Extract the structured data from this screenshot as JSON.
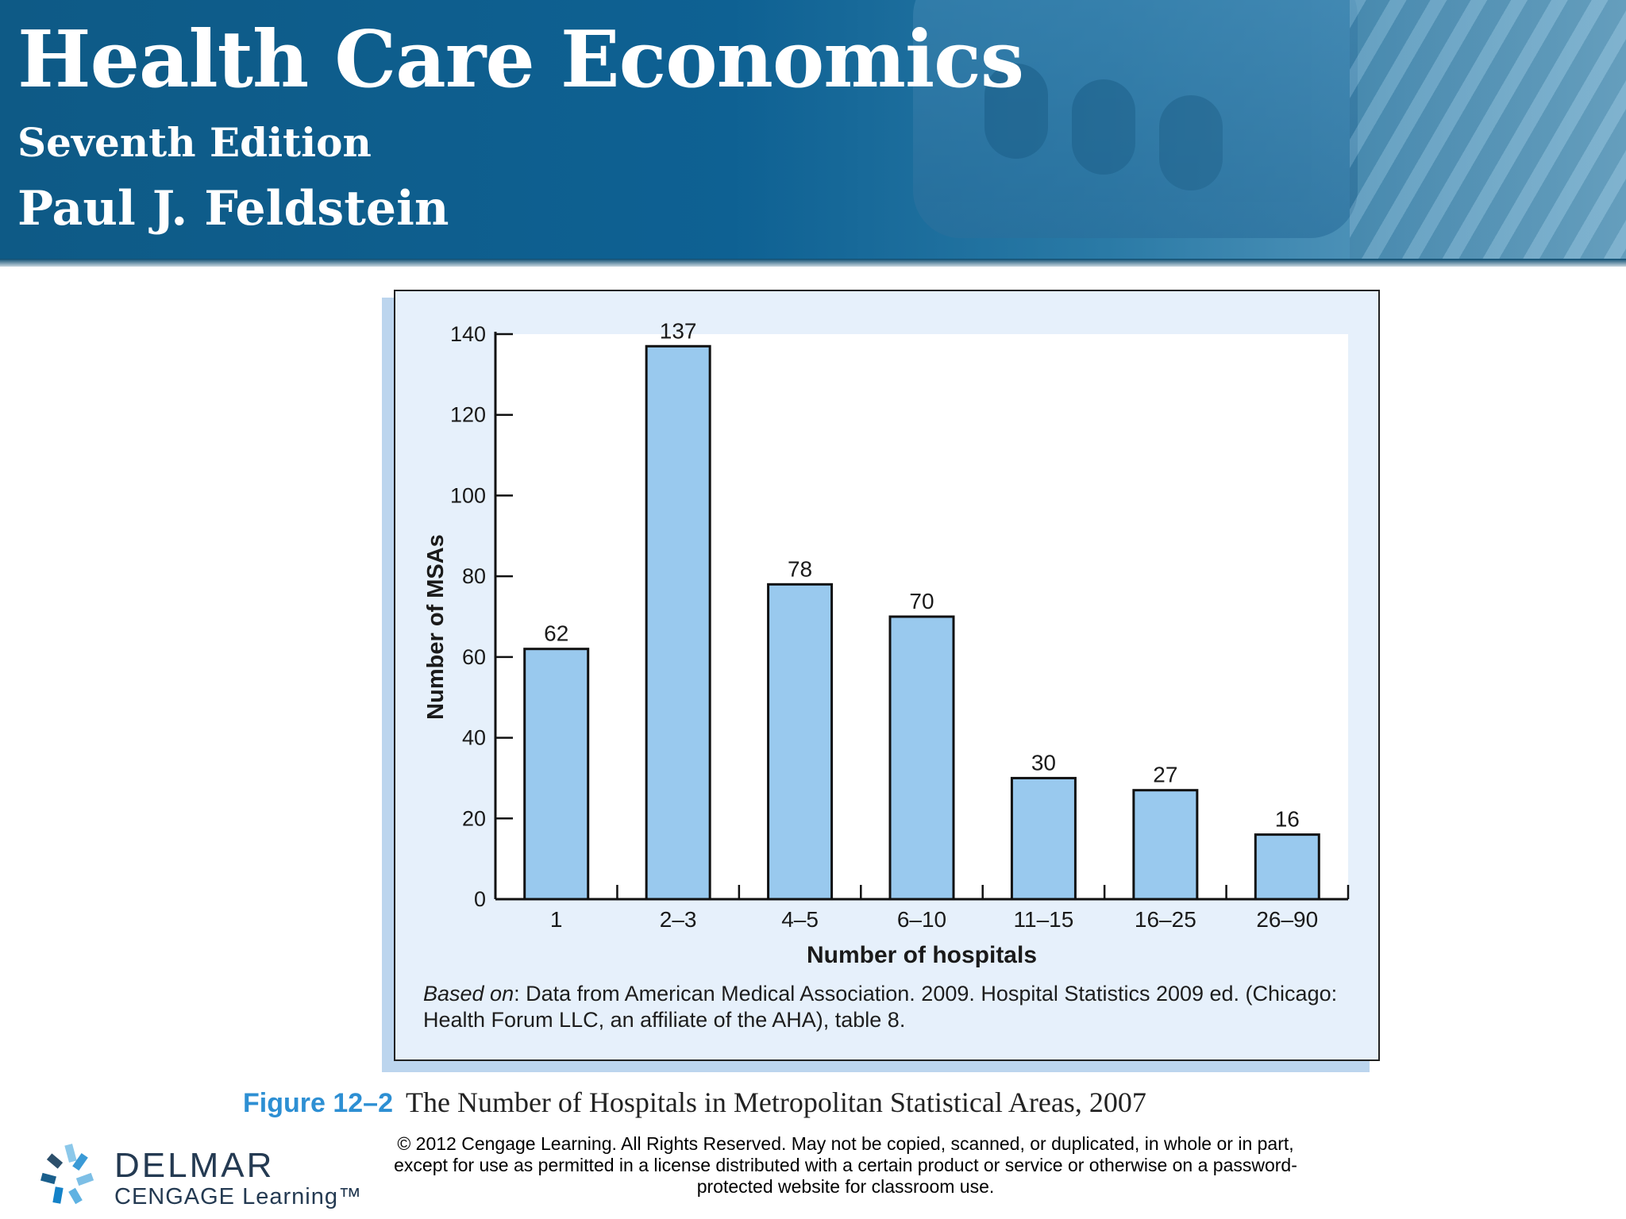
{
  "header": {
    "title": "Health Care Economics",
    "edition": "Seventh Edition",
    "author": "Paul J. Feldstein"
  },
  "figure": {
    "label": "Figure 12–2",
    "title": "The Number of Hospitals in Metropolitan Statistical Areas, 2007",
    "source_prefix": "Based on",
    "source_text": ": Data from American Medical Association. 2009. Hospital Statistics 2009 ed. (Chicago: Health Forum LLC, an affiliate of the AHA), table 8."
  },
  "chart_data": {
    "type": "bar",
    "title": "",
    "categories": [
      "1",
      "2–3",
      "4–5",
      "6–10",
      "11–15",
      "16–25",
      "26–90"
    ],
    "values": [
      62,
      137,
      78,
      70,
      30,
      27,
      16
    ],
    "xlabel": "Number of hospitals",
    "ylabel": "Number of MSAs",
    "ylim": [
      0,
      140
    ],
    "yticks": [
      0,
      20,
      40,
      60,
      80,
      100,
      120,
      140
    ],
    "grid": false,
    "data_labels": true,
    "colors": {
      "bar": "#99c9ee",
      "bar_stroke": "#111111",
      "plot_bg": "#ffffff",
      "panel_bg": "#e6f0fb"
    }
  },
  "footer": {
    "copyright": "© 2012 Cengage Learning. All Rights Reserved. May not be copied, scanned, or duplicated, in whole or in part, except for use as permitted in a license distributed with a certain product or service or otherwise on a password-protected website for classroom use.",
    "logo_top": "DELMAR",
    "logo_bottom": "CENGAGE Learning™"
  }
}
